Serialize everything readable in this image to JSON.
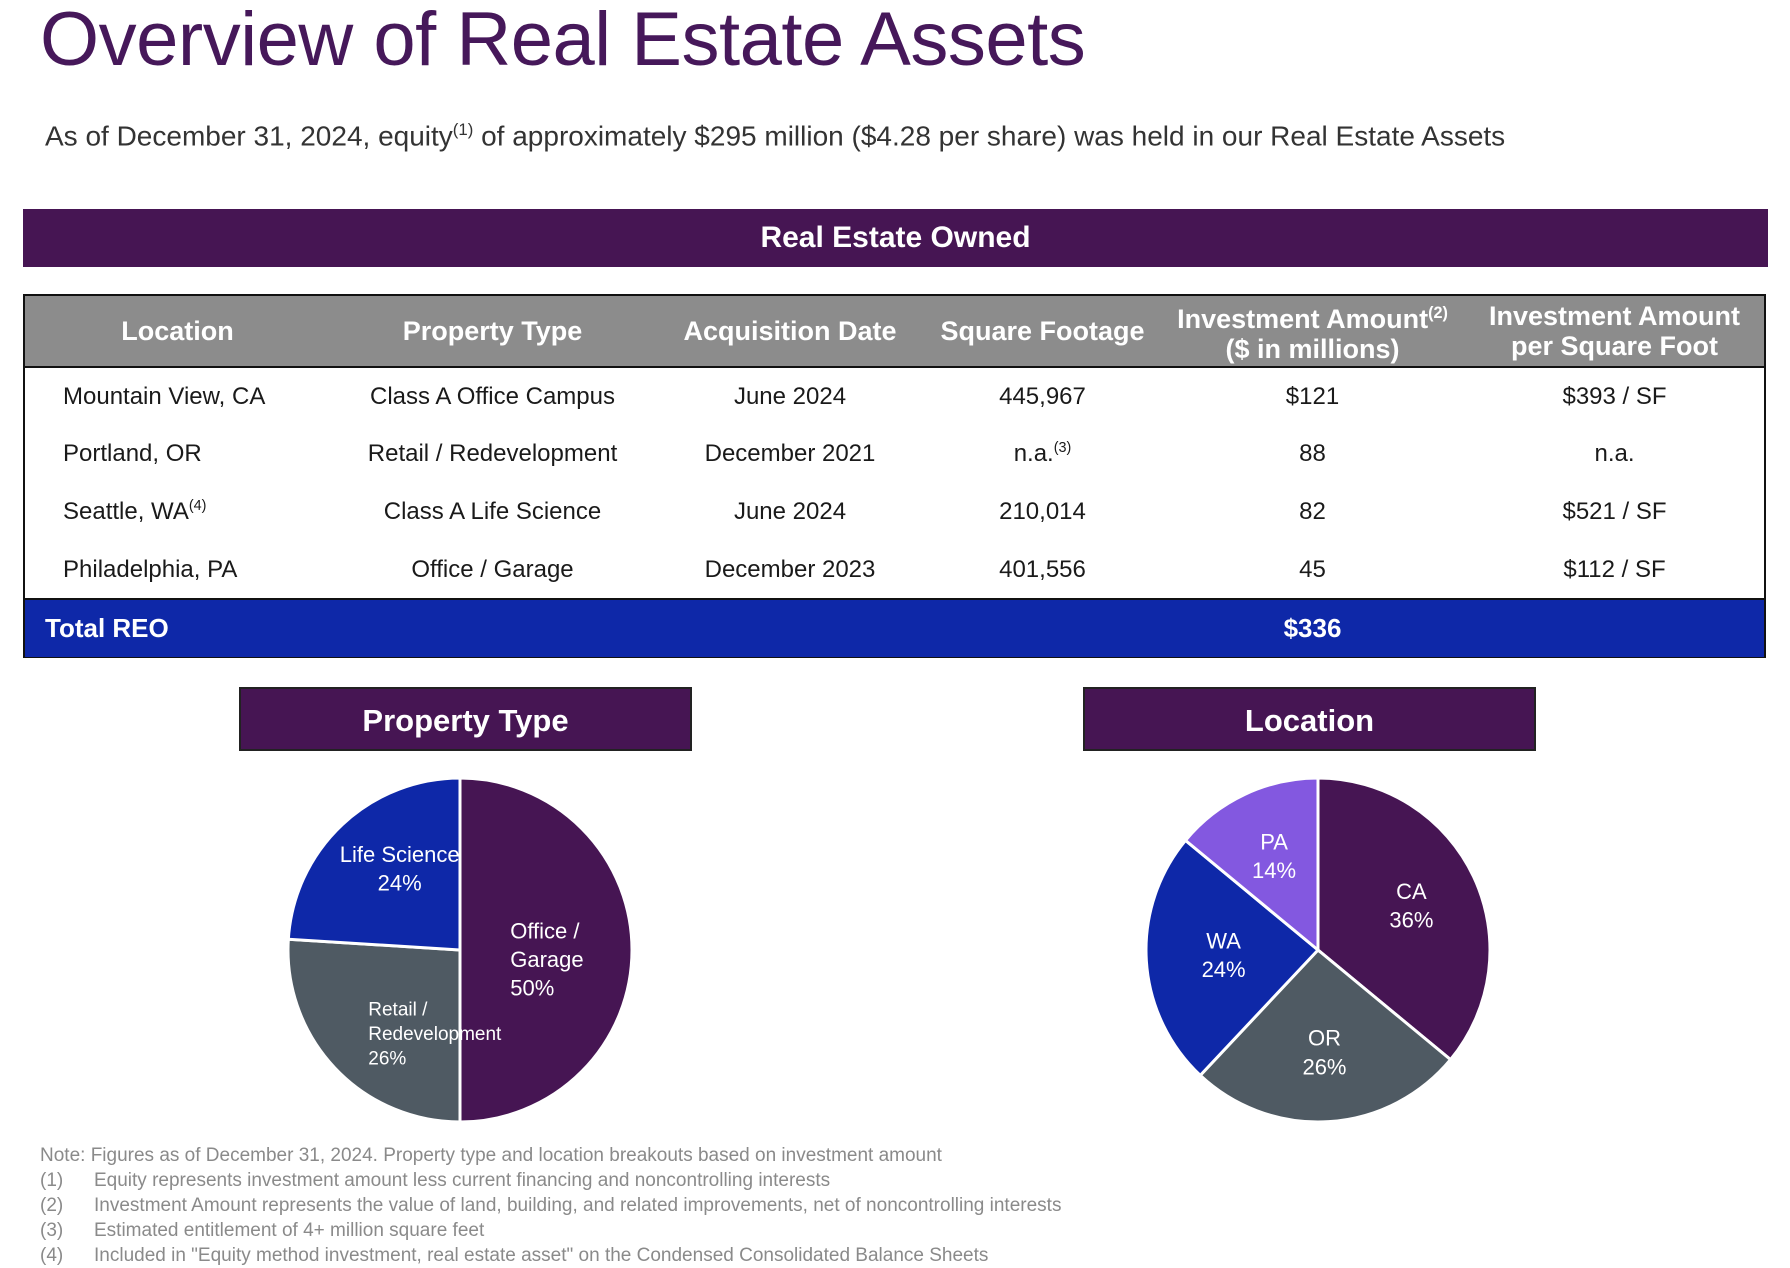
{
  "title": "Overview of Real Estate Assets",
  "subtitle": {
    "before": "As of December 31, 2024, equity",
    "sup": "(1)",
    "after": " of approximately $295 million ($4.28 per share) was held in our Real Estate Assets"
  },
  "section_title": "Real Estate Owned",
  "table": {
    "headers": {
      "location": "Location",
      "property_type": "Property Type",
      "acquisition_date": "Acquisition Date",
      "square_footage": "Square Footage",
      "investment_amount_line1": "Investment Amount",
      "investment_amount_sup": "(2)",
      "investment_amount_line2": "($ in millions)",
      "per_sf_line1": "Investment Amount",
      "per_sf_line2": "per Square Foot"
    },
    "rows": [
      {
        "location": "Mountain View, CA",
        "location_sup": "",
        "property_type": "Class A Office Campus",
        "acquisition_date": "June 2024",
        "square_footage": "445,967",
        "square_footage_sup": "",
        "investment_amount": "$121",
        "per_sf": "$393 / SF"
      },
      {
        "location": "Portland, OR",
        "location_sup": "",
        "property_type": "Retail / Redevelopment",
        "acquisition_date": "December 2021",
        "square_footage": "n.a.",
        "square_footage_sup": "(3)",
        "investment_amount": "88",
        "per_sf": "n.a."
      },
      {
        "location": "Seattle, WA",
        "location_sup": "(4)",
        "property_type": "Class A Life Science",
        "acquisition_date": "June 2024",
        "square_footage": "210,014",
        "square_footage_sup": "",
        "investment_amount": "82",
        "per_sf": "$521 / SF"
      },
      {
        "location": "Philadelphia, PA",
        "location_sup": "",
        "property_type": "Office / Garage",
        "acquisition_date": "December 2023",
        "square_footage": "401,556",
        "square_footage_sup": "",
        "investment_amount": "45",
        "per_sf": "$112 / SF"
      }
    ],
    "total": {
      "label": "Total REO",
      "value": "$336"
    }
  },
  "chart_data": [
    {
      "type": "pie",
      "title": "Property Type",
      "slices": [
        {
          "label_lines": [
            "Office /",
            "Garage",
            "50%"
          ],
          "value": 50,
          "color": "#461553"
        },
        {
          "label_lines": [
            "Retail /",
            "Redevelopment",
            "26%"
          ],
          "value": 26,
          "color": "#4f5a63"
        },
        {
          "label_lines": [
            "Life Science",
            "24%"
          ],
          "value": 24,
          "color": "#0e28a8"
        }
      ]
    },
    {
      "type": "pie",
      "title": "Location",
      "slices": [
        {
          "label_lines": [
            "CA",
            "36%"
          ],
          "value": 36,
          "color": "#461553"
        },
        {
          "label_lines": [
            "OR",
            "26%"
          ],
          "value": 26,
          "color": "#4f5a63"
        },
        {
          "label_lines": [
            "WA",
            "24%"
          ],
          "value": 24,
          "color": "#0e28a8"
        },
        {
          "label_lines": [
            "PA",
            "14%"
          ],
          "value": 14,
          "color": "#8358e0"
        }
      ]
    }
  ],
  "notes": {
    "intro": "Note: Figures as of December 31, 2024. Property type and location breakouts based on investment amount",
    "items": [
      {
        "num": "(1)",
        "text": "Equity represents investment amount less current financing and noncontrolling interests"
      },
      {
        "num": "(2)",
        "text": "Investment Amount represents the value of land, building, and related improvements, net of noncontrolling interests"
      },
      {
        "num": "(3)",
        "text": "Estimated entitlement of 4+ million square feet"
      },
      {
        "num": "(4)",
        "text": "Included in \"Equity method investment, real estate asset\" on the Condensed Consolidated Balance Sheets"
      }
    ]
  }
}
